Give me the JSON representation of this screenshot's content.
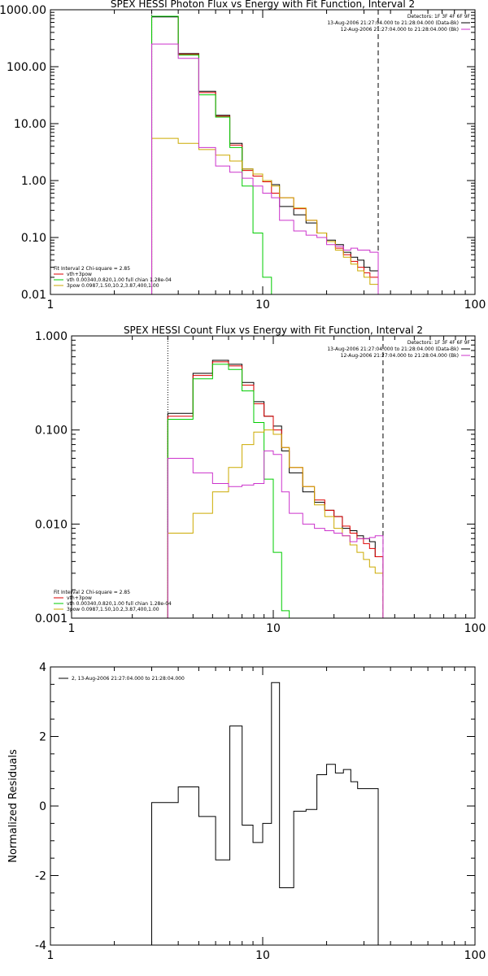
{
  "chart_data": [
    {
      "type": "line",
      "title": "SPEX HESSI Photon Flux vs Energy with Fit Function, Interval 2",
      "xlabel": "",
      "ylabel": "",
      "xscale": "log",
      "yscale": "log",
      "xlim": [
        1,
        100
      ],
      "ylim": [
        0.01,
        1000
      ],
      "xticks": [
        "1",
        "10",
        "100"
      ],
      "yticks": [
        "0.01",
        "0.10",
        "1.00",
        "10.00",
        "100.00",
        "1000.00"
      ],
      "ytick_values": [
        0.01,
        0.1,
        1,
        10,
        100,
        1000
      ],
      "vlines": [
        {
          "x": 3,
          "style": "dotted"
        },
        {
          "x": 35,
          "style": "dashed"
        }
      ],
      "top_legend": {
        "header": "Detectors: 1F 3F 4F 6F 9F",
        "entries": [
          {
            "text": "13-Aug-2006 21:27:04.000 to 21:28:04.000 (Data-Bk)",
            "color": "#000000"
          },
          {
            "text": "12-Aug-2006 21:27:04.000 to 21:28:04.000 (Bk)",
            "color": "#cc33cc"
          }
        ]
      },
      "bottom_legend": {
        "header": "Fit Interval 2   Chi-square = 2.85",
        "entries": [
          {
            "text": "vth+3pow",
            "color": "#dd0000"
          },
          {
            "text": "vth 0.00340,0.820,1.00  full chian 1.28e-04",
            "color": "#00cc00"
          },
          {
            "text": "3pow 0.0987,1.50,10.2,3.87,400,1.00",
            "color": "#ccaa00"
          }
        ]
      },
      "series": [
        {
          "color": "#000000",
          "edges": [
            3,
            4,
            5,
            6,
            7,
            8,
            9,
            10,
            11,
            12,
            14,
            16,
            18,
            20,
            22,
            24,
            26,
            28,
            30,
            32,
            35
          ],
          "values": [
            750,
            170,
            37,
            14,
            4.5,
            1.6,
            1.3,
            1.0,
            0.85,
            0.35,
            0.25,
            0.18,
            0.12,
            0.09,
            0.075,
            0.055,
            0.045,
            0.04,
            0.03,
            0.026
          ]
        },
        {
          "color": "#dd0000",
          "edges": [
            3,
            4,
            5,
            6,
            7,
            8,
            9,
            10,
            11,
            12,
            14,
            16,
            18,
            20,
            22,
            24,
            26,
            28,
            30,
            32,
            35
          ],
          "values": [
            770,
            165,
            35,
            13.5,
            4.2,
            1.5,
            1.2,
            0.95,
            0.6,
            0.5,
            0.32,
            0.2,
            0.12,
            0.085,
            0.065,
            0.05,
            0.038,
            0.03,
            0.024,
            0.02
          ]
        },
        {
          "color": "#00cc00",
          "edges": [
            3,
            4,
            5,
            6,
            7,
            8,
            9,
            10,
            11
          ],
          "values": [
            770,
            160,
            32,
            13,
            3.8,
            0.8,
            0.12,
            0.02,
            0.004
          ]
        },
        {
          "color": "#ccaa00",
          "edges": [
            3,
            4,
            5,
            6,
            7,
            8,
            9,
            10,
            11,
            12,
            14,
            16,
            18,
            20,
            22,
            24,
            26,
            28,
            30,
            32,
            35
          ],
          "values": [
            5.5,
            4.5,
            3.5,
            2.8,
            2.2,
            1.6,
            1.3,
            1.0,
            0.8,
            0.5,
            0.33,
            0.2,
            0.12,
            0.085,
            0.06,
            0.045,
            0.034,
            0.026,
            0.02,
            0.015
          ]
        },
        {
          "color": "#cc33cc",
          "edges": [
            3,
            4,
            5,
            6,
            7,
            8,
            9,
            10,
            11,
            12,
            14,
            16,
            18,
            20,
            22,
            24,
            26,
            28,
            30,
            32,
            35
          ],
          "values": [
            250,
            140,
            3.8,
            1.8,
            1.4,
            1.1,
            0.8,
            0.6,
            0.5,
            0.2,
            0.13,
            0.11,
            0.1,
            0.075,
            0.07,
            0.06,
            0.065,
            0.06,
            0.06,
            0.055
          ]
        }
      ]
    },
    {
      "type": "line",
      "title": "SPEX HESSI Count Flux vs Energy with Fit Function, Interval 2",
      "xlabel": "",
      "ylabel": "",
      "xscale": "log",
      "yscale": "log",
      "xlim": [
        1,
        100
      ],
      "ylim": [
        0.001,
        1
      ],
      "xticks": [
        "1",
        "10",
        "100"
      ],
      "yticks": [
        "0.001",
        "0.010",
        "0.100",
        "1.000"
      ],
      "ytick_values": [
        0.001,
        0.01,
        0.1,
        1
      ],
      "vlines": [
        {
          "x": 3,
          "style": "dotted"
        },
        {
          "x": 35,
          "style": "dashed"
        }
      ],
      "top_legend": {
        "header": "Detectors: 1F 3F 4F 6F 9F",
        "entries": [
          {
            "text": "13-Aug-2006 21:27:04.000 to 21:28:04.000 (Data-Bk)",
            "color": "#000000"
          },
          {
            "text": "12-Aug-2006 21:27:04.000 to 21:28:04.000 (Bk)",
            "color": "#cc33cc"
          }
        ]
      },
      "bottom_legend": {
        "header": "Fit Interval 2   Chi-square = 2.85",
        "entries": [
          {
            "text": "vth+3pow",
            "color": "#dd0000"
          },
          {
            "text": "vth 0.00340,0.820,1.00  full chian 1.28e-04",
            "color": "#00cc00"
          },
          {
            "text": "3pow 0.0987,1.50,10.2,3.87,400,1.00",
            "color": "#ccaa00"
          }
        ]
      },
      "series": [
        {
          "color": "#000000",
          "edges": [
            3,
            4,
            5,
            6,
            7,
            8,
            9,
            10,
            11,
            12,
            14,
            16,
            18,
            20,
            22,
            24,
            26,
            28,
            30,
            32,
            35
          ],
          "values": [
            0.15,
            0.4,
            0.55,
            0.5,
            0.32,
            0.2,
            0.14,
            0.11,
            0.06,
            0.035,
            0.022,
            0.017,
            0.014,
            0.012,
            0.009,
            0.0085,
            0.0075,
            0.007,
            0.0065,
            0.0045
          ]
        },
        {
          "color": "#dd0000",
          "edges": [
            3,
            4,
            5,
            6,
            7,
            8,
            9,
            10,
            11,
            12,
            14,
            16,
            18,
            20,
            22,
            24,
            26,
            28,
            30,
            32,
            35
          ],
          "values": [
            0.14,
            0.38,
            0.53,
            0.48,
            0.3,
            0.19,
            0.14,
            0.1,
            0.065,
            0.04,
            0.025,
            0.018,
            0.014,
            0.012,
            0.0095,
            0.008,
            0.007,
            0.0062,
            0.0055,
            0.0045
          ]
        },
        {
          "color": "#00cc00",
          "edges": [
            3,
            4,
            5,
            6,
            7,
            8,
            9,
            10,
            11,
            12
          ],
          "values": [
            0.13,
            0.35,
            0.5,
            0.44,
            0.26,
            0.12,
            0.03,
            0.005,
            0.0012,
            0.0009
          ]
        },
        {
          "color": "#ccaa00",
          "edges": [
            3,
            4,
            5,
            6,
            7,
            8,
            9,
            10,
            11,
            12,
            14,
            16,
            18,
            20,
            22,
            24,
            26,
            28,
            30,
            32,
            35,
            38
          ],
          "values": [
            0.008,
            0.013,
            0.022,
            0.04,
            0.07,
            0.095,
            0.1,
            0.09,
            0.065,
            0.04,
            0.025,
            0.016,
            0.012,
            0.009,
            0.0075,
            0.006,
            0.005,
            0.0042,
            0.0035,
            0.003,
            0.001
          ]
        },
        {
          "color": "#cc33cc",
          "edges": [
            3,
            4,
            5,
            6,
            7,
            8,
            9,
            10,
            11,
            12,
            14,
            16,
            18,
            20,
            22,
            24,
            26,
            28,
            30,
            32,
            35
          ],
          "values": [
            0.05,
            0.035,
            0.027,
            0.025,
            0.026,
            0.027,
            0.06,
            0.055,
            0.022,
            0.013,
            0.01,
            0.009,
            0.0085,
            0.008,
            0.0075,
            0.0065,
            0.007,
            0.007,
            0.0072,
            0.0075
          ]
        }
      ]
    },
    {
      "type": "line",
      "title": "",
      "xlabel": "",
      "ylabel": "Normalized Residuals",
      "xscale": "log",
      "yscale": "linear",
      "xlim": [
        1,
        100
      ],
      "ylim": [
        -4,
        4
      ],
      "xticks": [
        "1",
        "10",
        "100"
      ],
      "yticks": [
        "-4",
        "-2",
        "0",
        "2",
        "4"
      ],
      "ytick_values": [
        -4,
        -2,
        0,
        2,
        4
      ],
      "legend": [
        {
          "text": "2, 13-Aug-2006 21:27:04.000 to 21:28:04.000",
          "color": "#000000"
        }
      ],
      "series": [
        {
          "color": "#000000",
          "edges": [
            3,
            4,
            5,
            6,
            7,
            8,
            9,
            10,
            11,
            12,
            14,
            16,
            18,
            20,
            22,
            24,
            26,
            28,
            30,
            32,
            35
          ],
          "values": [
            0.1,
            0.55,
            -0.3,
            -1.55,
            2.3,
            -0.55,
            -1.05,
            -0.5,
            3.55,
            -2.35,
            -0.15,
            -0.1,
            0.9,
            1.2,
            0.95,
            1.05,
            0.7,
            0.5,
            0.5,
            0.5
          ]
        }
      ]
    }
  ]
}
